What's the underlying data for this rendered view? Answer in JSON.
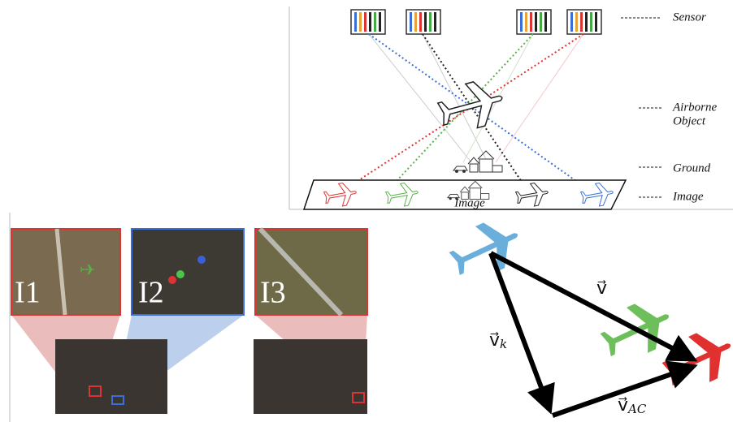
{
  "sensor_diagram": {
    "labels": {
      "sensor": "Sensor",
      "airborne": "Airborne",
      "object": "Object",
      "ground": "Ground",
      "image": "Image"
    },
    "image_plane_label": "Image"
  },
  "satellite_images": [
    "I1",
    "I2",
    "I3"
  ],
  "vectors": [
    {
      "label": "v⃗"
    },
    {
      "label": "v⃗",
      "subscript": "k"
    },
    {
      "label": "v⃗",
      "subscript": "AC"
    }
  ]
}
